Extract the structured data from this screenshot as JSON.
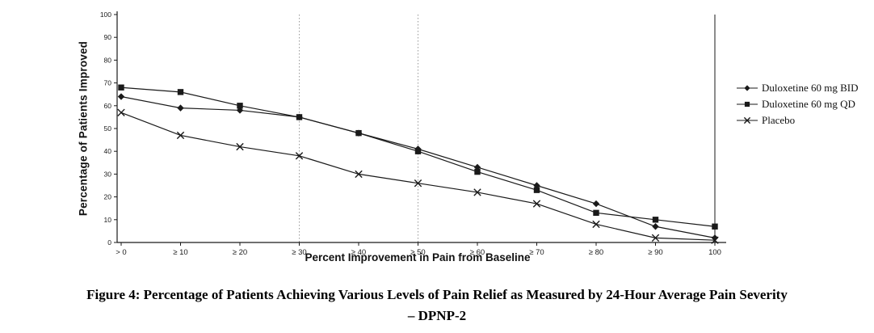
{
  "figure": {
    "caption_line1": "Figure 4: Percentage of Patients Achieving Various Levels of Pain Relief as Measured by 24-Hour Average Pain Severity",
    "caption_line2": "– DPNP-2"
  },
  "chart_data": {
    "type": "line",
    "title": "",
    "xlabel": "Percent Improvement in Pain from Baseline",
    "ylabel": "Percentage of Patients Improved",
    "ylim": [
      0,
      100
    ],
    "ytick_step": 10,
    "grid": "off",
    "legend_position": "right",
    "categories": [
      "> 0",
      "≥ 10",
      "≥ 20",
      "≥ 30",
      "≥ 40",
      "≥ 50",
      "≥ 60",
      "≥ 70",
      "≥ 80",
      "≥ 90",
      "100"
    ],
    "reference_lines": {
      "dotted_at": [
        "≥ 30",
        "≥ 50"
      ],
      "solid_at": [
        "100"
      ]
    },
    "series": [
      {
        "name": "Duloxetine 60 mg BID",
        "marker": "diamond",
        "values": [
          64,
          59,
          58,
          55,
          48,
          41,
          33,
          25,
          17,
          7,
          2
        ]
      },
      {
        "name": "Duloxetine 60 mg QD",
        "marker": "square",
        "values": [
          68,
          66,
          60,
          55,
          48,
          40,
          31,
          23,
          13,
          10,
          7
        ]
      },
      {
        "name": "Placebo",
        "marker": "x",
        "values": [
          57,
          47,
          42,
          38,
          30,
          26,
          22,
          17,
          8,
          2,
          1
        ]
      }
    ]
  }
}
